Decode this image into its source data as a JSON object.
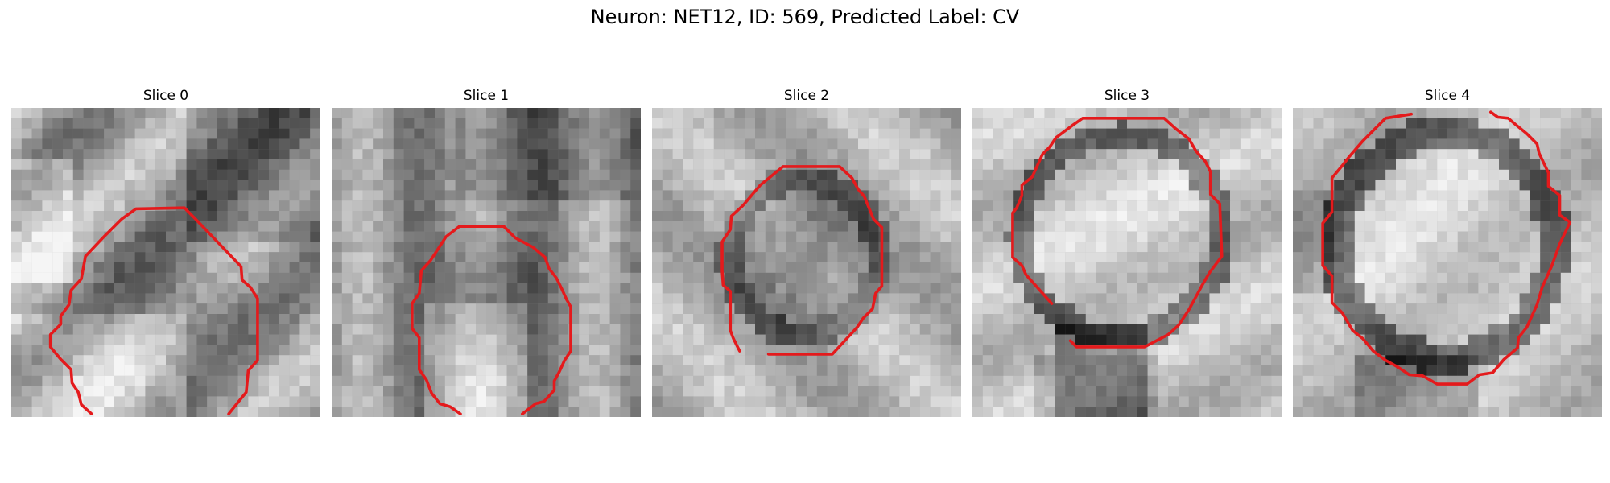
{
  "figure": {
    "title": "Neuron: NET12, ID: 569, Predicted Label: CV"
  },
  "panels": [
    {
      "title": "Slice 0"
    },
    {
      "title": "Slice 1"
    },
    {
      "title": "Slice 2"
    },
    {
      "title": "Slice 3"
    },
    {
      "title": "Slice 4"
    }
  ],
  "contour_color": "#e41a1c",
  "image_style": "grayscale microscopy patch"
}
